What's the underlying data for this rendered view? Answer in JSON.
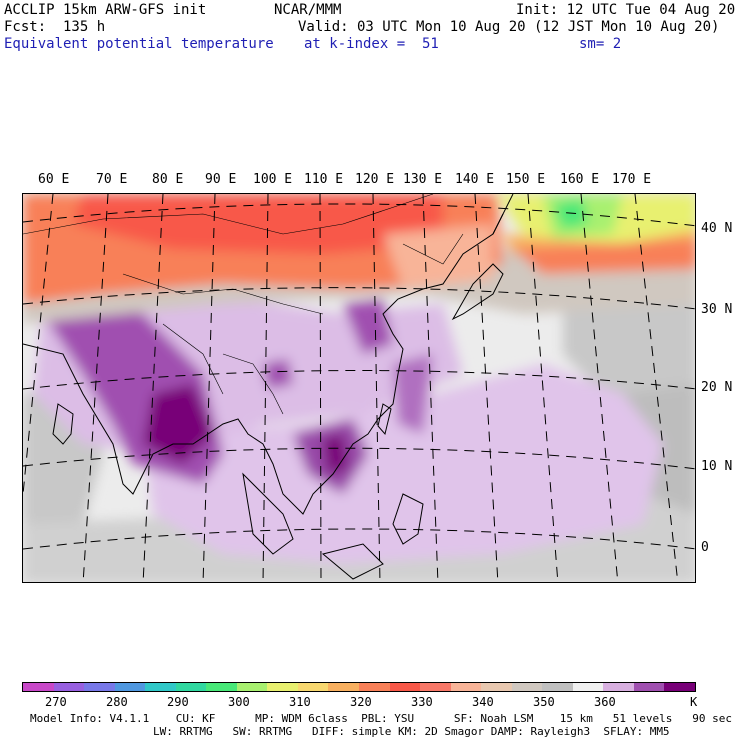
{
  "header": {
    "line1_left": "ACCLIP 15km ARW-GFS init",
    "line1_center": "NCAR/MMM",
    "line1_right": "Init: 12 UTC Tue 04 Aug 20",
    "line2_left": "Fcst:  135 h",
    "line2_right": "Valid: 03 UTC Mon 10 Aug 20 (12 JST Mon 10 Aug 20)",
    "line3_left": "Equivalent potential temperature",
    "line3_center": "at k-index =  51",
    "line3_right": "sm= 2"
  },
  "map": {
    "lon_labels": [
      "60 E",
      "70 E",
      "80 E",
      "90 E",
      "100 E",
      "110 E",
      "120 E",
      "130 E",
      "140 E",
      "150 E",
      "160 E",
      "170 E"
    ],
    "lat_labels": [
      "40 N",
      "30 N",
      "20 N",
      "10 N",
      "0"
    ]
  },
  "colorbar": {
    "colors": [
      "#c848c8",
      "#9860e0",
      "#7878e8",
      "#5098e0",
      "#30c8c8",
      "#30d8a0",
      "#48e878",
      "#a8f070",
      "#e8f070",
      "#f8d870",
      "#f8b060",
      "#f88058",
      "#f85848",
      "#f87868",
      "#f8b498",
      "#e8c8b0",
      "#d0c8c0",
      "#c0c0c0",
      "#f0f0f0",
      "#d8b0e0",
      "#a050b0",
      "#780078"
    ],
    "labels": [
      "270",
      "280",
      "290",
      "300",
      "310",
      "320",
      "330",
      "340",
      "350",
      "360",
      "K"
    ]
  },
  "footer": {
    "line1": "Model Info: V4.1.1    CU: KF      MP: WDM 6class  PBL: YSU      SF: Noah LSM    15 km   51 levels   90 sec",
    "line2": "LW: RRTMG   SW: RRTMG   DIFF: simple KM: 2D Smagor DAMP: Rayleigh3  SFLAY: MM5"
  }
}
